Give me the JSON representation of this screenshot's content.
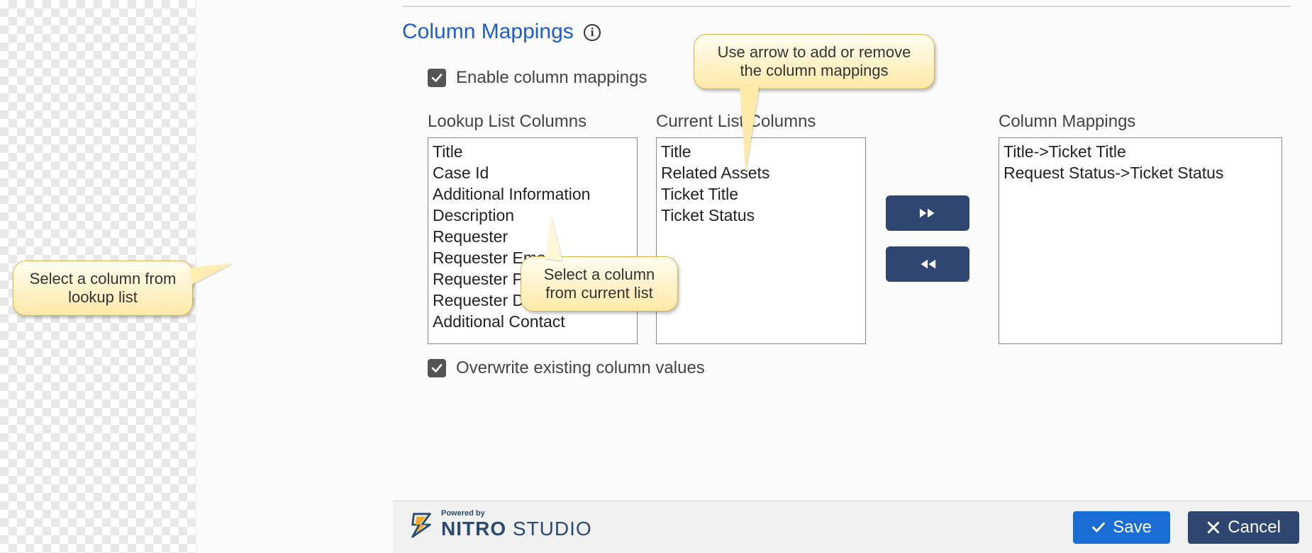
{
  "section": {
    "title": "Column Mappings"
  },
  "checkboxes": {
    "enable_label": "Enable column mappings",
    "enable_checked": true,
    "overwrite_label": "Overwrite existing column values",
    "overwrite_checked": true
  },
  "labels": {
    "lookup": "Lookup List Columns",
    "current": "Current List Columns",
    "mappings": "Column Mappings"
  },
  "lists": {
    "lookup": [
      "Title",
      "Case Id",
      "Additional Information",
      "Description",
      "Requester",
      "Requester Email",
      "Requester Phone",
      "Requester Department",
      "Additional Contact"
    ],
    "current": [
      "Title",
      "Related Assets",
      "Ticket Title",
      "Ticket Status"
    ],
    "mappings": [
      "Title->Ticket Title",
      "Request Status->Ticket Status"
    ]
  },
  "callouts": {
    "lookup": "Select a column from lookup list",
    "current": "Select a column from current list",
    "arrows": "Use arrow to add or remove the column mappings"
  },
  "footer": {
    "powered_by": "Powered by",
    "brand_bold": "NITRO",
    "brand_light": " STUDIO",
    "save_label": "Save",
    "cancel_label": "Cancel"
  },
  "colors": {
    "accent_blue": "#1a5dd6",
    "button_primary": "#1a6dd4",
    "button_dark": "#2f4670",
    "panel_bg": "#fbfbfb",
    "callout_border": "#d8b44a"
  }
}
